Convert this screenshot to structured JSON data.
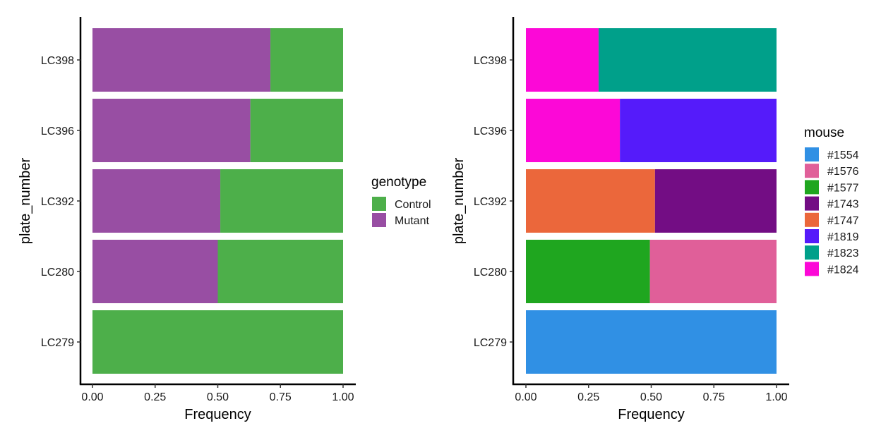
{
  "chart_data": [
    {
      "type": "bar",
      "orientation": "horizontal",
      "stacked": "fill",
      "categories": [
        "LC279",
        "LC280",
        "LC392",
        "LC396",
        "LC398"
      ],
      "xlabel": "Frequency",
      "ylabel": "plate_number",
      "xlim": [
        0,
        1
      ],
      "xticks": [
        "0.00",
        "0.25",
        "0.50",
        "0.75",
        "1.00"
      ],
      "grid": false,
      "legend": {
        "title": "genotype",
        "placement": "right",
        "entries": [
          {
            "label": "Control",
            "color": "#4daf4a"
          },
          {
            "label": "Mutant",
            "color": "#984ea3"
          }
        ]
      },
      "series": [
        {
          "name": "Control",
          "color": "#4daf4a",
          "values": [
            1.0,
            0.5,
            0.49,
            0.37,
            0.29
          ]
        },
        {
          "name": "Mutant",
          "color": "#984ea3",
          "values": [
            0.0,
            0.5,
            0.51,
            0.63,
            0.71
          ]
        }
      ]
    },
    {
      "type": "bar",
      "orientation": "horizontal",
      "stacked": "fill",
      "categories": [
        "LC279",
        "LC280",
        "LC392",
        "LC396",
        "LC398"
      ],
      "xlabel": "Frequency",
      "ylabel": "plate_number",
      "xlim": [
        0,
        1
      ],
      "xticks": [
        "0.00",
        "0.25",
        "0.50",
        "0.75",
        "1.00"
      ],
      "grid": false,
      "legend": {
        "title": "mouse",
        "placement": "right",
        "entries": [
          {
            "label": "#1554",
            "color": "#3090e4"
          },
          {
            "label": "#1576",
            "color": "#e05f99"
          },
          {
            "label": "#1577",
            "color": "#1fa61f"
          },
          {
            "label": "#1743",
            "color": "#730d84"
          },
          {
            "label": "#1747",
            "color": "#eb673b"
          },
          {
            "label": "#1819",
            "color": "#551bfa"
          },
          {
            "label": "#1823",
            "color": "#00a08a"
          },
          {
            "label": "#1824",
            "color": "#fc08d7"
          }
        ]
      },
      "series": [
        {
          "name": "#1554",
          "color": "#3090e4",
          "values": [
            1.0,
            0,
            0,
            0,
            0
          ]
        },
        {
          "name": "#1576",
          "color": "#e05f99",
          "values": [
            0,
            0.505,
            0,
            0,
            0
          ]
        },
        {
          "name": "#1577",
          "color": "#1fa61f",
          "values": [
            0,
            0.495,
            0,
            0,
            0
          ]
        },
        {
          "name": "#1743",
          "color": "#730d84",
          "values": [
            0,
            0,
            0.485,
            0,
            0
          ]
        },
        {
          "name": "#1747",
          "color": "#eb673b",
          "values": [
            0,
            0,
            0.515,
            0,
            0
          ]
        },
        {
          "name": "#1819",
          "color": "#551bfa",
          "values": [
            0,
            0,
            0,
            0.625,
            0
          ]
        },
        {
          "name": "#1823",
          "color": "#00a08a",
          "values": [
            0,
            0,
            0,
            0,
            0.71
          ]
        },
        {
          "name": "#1824",
          "color": "#fc08d7",
          "values": [
            0,
            0,
            0,
            0.375,
            0.29
          ]
        }
      ]
    }
  ]
}
